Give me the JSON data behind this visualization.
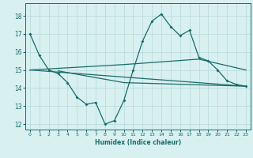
{
  "xlabel": "Humidex (Indice chaleur)",
  "xlim": [
    -0.5,
    23.5
  ],
  "ylim": [
    11.7,
    18.7
  ],
  "yticks": [
    12,
    13,
    14,
    15,
    16,
    17,
    18
  ],
  "xticks": [
    0,
    1,
    2,
    3,
    4,
    5,
    6,
    7,
    8,
    9,
    10,
    11,
    12,
    13,
    14,
    15,
    16,
    17,
    18,
    19,
    20,
    21,
    22,
    23
  ],
  "bg_color": "#d8f0f0",
  "grid_color": "#b8d8d8",
  "line_color": "#1a6b6b",
  "series": [
    {
      "x": [
        0,
        1,
        2,
        3,
        4,
        5,
        6,
        7,
        8,
        9,
        10,
        11,
        12,
        13,
        14,
        15,
        16,
        17,
        18,
        19,
        20,
        21,
        22,
        23
      ],
      "y": [
        17.0,
        15.8,
        15.0,
        14.8,
        14.3,
        13.5,
        13.1,
        13.2,
        12.0,
        12.2,
        13.3,
        15.0,
        16.6,
        17.7,
        18.1,
        17.4,
        16.9,
        17.2,
        15.7,
        15.5,
        15.0,
        14.4,
        14.2,
        14.1
      ],
      "marker": true
    },
    {
      "x": [
        0,
        10,
        18,
        23
      ],
      "y": [
        15.0,
        15.3,
        15.6,
        15.0
      ],
      "marker": false
    },
    {
      "x": [
        0,
        23
      ],
      "y": [
        15.0,
        14.1
      ],
      "marker": false
    },
    {
      "x": [
        3,
        10,
        23
      ],
      "y": [
        14.95,
        14.3,
        14.1
      ],
      "marker": false
    }
  ]
}
